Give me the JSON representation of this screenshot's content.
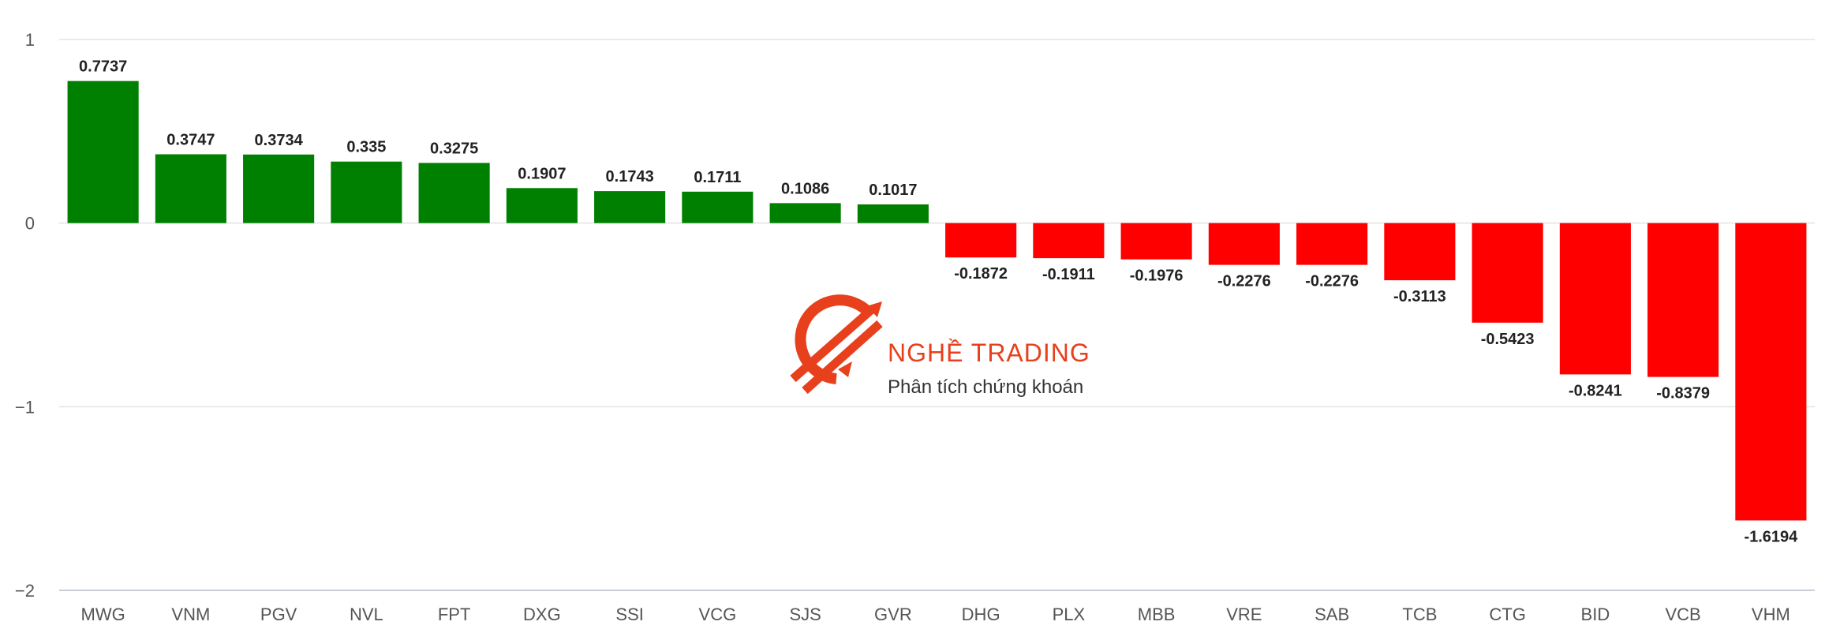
{
  "chart_data": {
    "type": "bar",
    "categories": [
      "MWG",
      "VNM",
      "PGV",
      "NVL",
      "FPT",
      "DXG",
      "SSI",
      "VCG",
      "SJS",
      "GVR",
      "DHG",
      "PLX",
      "MBB",
      "VRE",
      "SAB",
      "TCB",
      "CTG",
      "BID",
      "VCB",
      "VHM"
    ],
    "values": [
      0.7737,
      0.3747,
      0.3734,
      0.335,
      0.3275,
      0.1907,
      0.1743,
      0.1711,
      0.1086,
      0.1017,
      -0.1872,
      -0.1911,
      -0.1976,
      -0.2276,
      -0.2276,
      -0.3113,
      -0.5423,
      -0.8241,
      -0.8379,
      -1.6194
    ],
    "data_labels": [
      "0.7737",
      "0.3747",
      "0.3734",
      "0.335",
      "0.3275",
      "0.1907",
      "0.1743",
      "0.1711",
      "0.1086",
      "0.1017",
      "-0.1872",
      "-0.1911",
      "-0.1976",
      "-0.2276",
      "-0.2276",
      "-0.3113",
      "-0.5423",
      "-0.8241",
      "-0.8379",
      "-1.6194"
    ],
    "y_ticks": [
      1,
      0,
      -1,
      -2
    ],
    "y_tick_labels": [
      "1",
      "0",
      "−1",
      "−2"
    ],
    "ylim": [
      -2,
      1
    ],
    "grid": true,
    "legend": "none",
    "colors": {
      "positive": "#008000",
      "negative": "#ff0000"
    }
  },
  "watermark": {
    "name": "NGHỀ TRADING",
    "tagline": "Phân tích chứng khoán",
    "color": "#e8401c"
  }
}
